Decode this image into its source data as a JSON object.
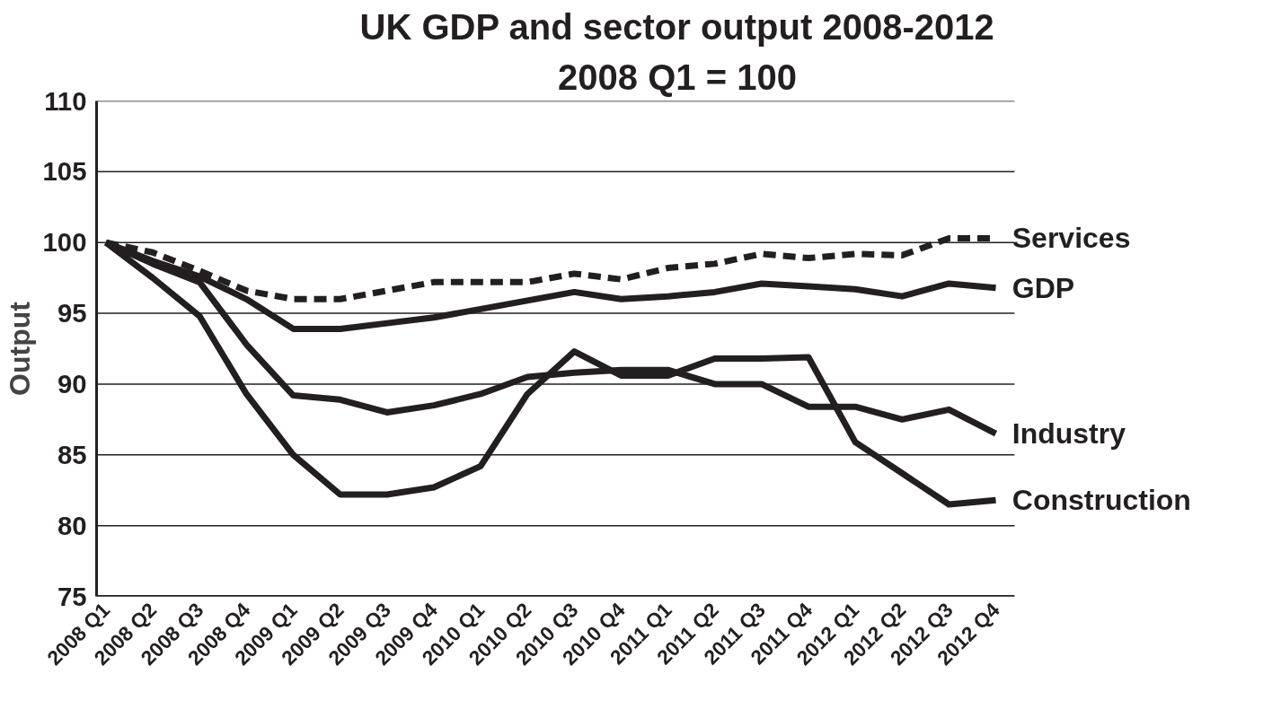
{
  "chart_data": {
    "type": "line",
    "title": "UK GDP and sector output 2008-2012",
    "subtitle": "2008 Q1 = 100",
    "ylabel": "Output",
    "categories": [
      "2008 Q1",
      "2008 Q2",
      "2008 Q3",
      "2008 Q4",
      "2009 Q1",
      "2009 Q2",
      "2009 Q3",
      "2009 Q4",
      "2010 Q1",
      "2010 Q2",
      "2010 Q3",
      "2010 Q4",
      "2011 Q1",
      "2011 Q2",
      "2011 Q3",
      "2011 Q4",
      "2012 Q1",
      "2012 Q2",
      "2012 Q3",
      "2012 Q4"
    ],
    "series": [
      {
        "name": "Services",
        "color": "#231f20",
        "line_style": "dashed",
        "values": [
          100,
          99.3,
          98,
          96.6,
          96,
          96,
          96.6,
          97.2,
          97.2,
          97.2,
          97.8,
          97.4,
          98.2,
          98.5,
          99.2,
          98.9,
          99.2,
          99.1,
          100.3,
          100.3
        ]
      },
      {
        "name": "GDP",
        "color": "#231f20",
        "line_style": "solid",
        "values": [
          100,
          98.7,
          97.6,
          96,
          93.9,
          93.9,
          94.3,
          94.7,
          95.3,
          95.9,
          96.5,
          96,
          96.2,
          96.5,
          97.1,
          96.9,
          96.7,
          96.2,
          97.1,
          96.8
        ]
      },
      {
        "name": "Industry",
        "color": "#231f20",
        "line_style": "solid",
        "values": [
          100,
          98.5,
          97.2,
          92.8,
          89.2,
          88.9,
          88,
          88.5,
          89.3,
          90.5,
          90.8,
          91,
          91,
          90,
          90,
          88.4,
          88.4,
          87.5,
          88.2,
          86.5
        ]
      },
      {
        "name": "Construction",
        "color": "#231f20",
        "line_style": "solid",
        "values": [
          100,
          97.5,
          94.8,
          89.3,
          85,
          82.2,
          82.2,
          82.7,
          84.2,
          89.3,
          92.3,
          90.6,
          90.6,
          91.8,
          91.8,
          91.9,
          85.9,
          83.7,
          81.5,
          81.8
        ]
      }
    ],
    "ylim": [
      75,
      110
    ],
    "yticks": [
      75,
      80,
      85,
      90,
      95,
      100,
      105,
      110
    ],
    "grid": "y",
    "marker": "none"
  }
}
